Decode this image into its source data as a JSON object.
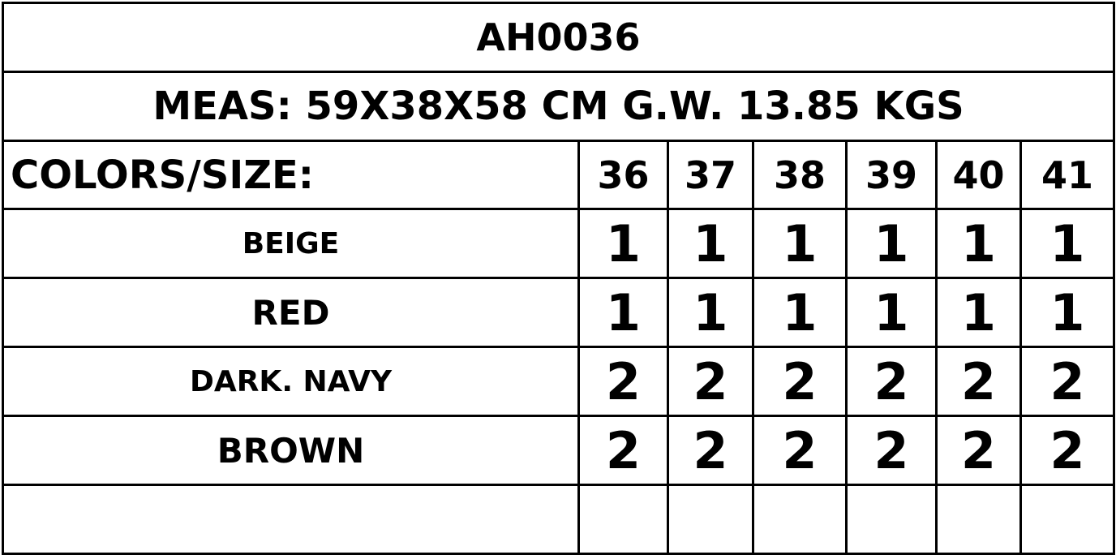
{
  "title": "AH0036",
  "measurements": "MEAS: 59X38X58  CM  G.W. 13.85 KGS",
  "header_label": "COLORS/SIZE:",
  "sizes": [
    "36",
    "37",
    "38",
    "39",
    "40",
    "41"
  ],
  "rows": [
    {
      "color": "BEIGE",
      "quantities": [
        "1",
        "1",
        "1",
        "1",
        "1",
        "1"
      ]
    },
    {
      "color": "RED",
      "quantities": [
        "1",
        "1",
        "1",
        "1",
        "1",
        "1"
      ]
    },
    {
      "color": "DARK. NAVY",
      "quantities": [
        "2",
        "2",
        "2",
        "2",
        "2",
        "2"
      ]
    },
    {
      "color": "BROWN",
      "quantities": [
        "2",
        "2",
        "2",
        "2",
        "2",
        "2"
      ]
    }
  ]
}
